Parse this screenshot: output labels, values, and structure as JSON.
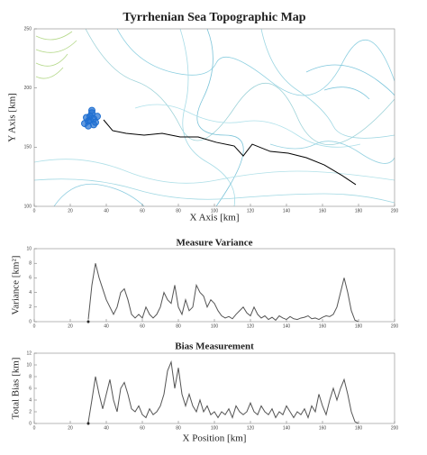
{
  "chart_data": [
    {
      "type": "line",
      "title": "Tyrrhenian Sea Topographic Map",
      "xlabel": "X Axis [km]",
      "ylabel": "Y Axis [km]",
      "xlim": [
        0,
        200
      ],
      "ylim": [
        100,
        250
      ],
      "xticks": [
        0,
        20,
        40,
        60,
        80,
        100,
        120,
        140,
        160,
        180,
        200
      ],
      "yticks": [
        100,
        150,
        200,
        250
      ],
      "series": [
        {
          "color": "#000000",
          "x": [
            38.5,
            43.5,
            51,
            61,
            71,
            81,
            91,
            101,
            111,
            116,
            121,
            131,
            141,
            151,
            161,
            171,
            178.5
          ],
          "values": [
            173.1,
            164,
            161.7,
            160.2,
            161.7,
            158.6,
            158.6,
            154.1,
            151,
            142.6,
            152.5,
            146.4,
            144.9,
            141.1,
            135,
            125.9,
            118.3
          ]
        }
      ],
      "points": {
        "color": "#1f6fd1",
        "x": [
          28,
          30,
          31,
          32,
          33,
          34,
          30,
          29,
          32,
          35,
          31,
          33
        ],
        "y": [
          170,
          172,
          176,
          179,
          174,
          171,
          168,
          175,
          181,
          176,
          173,
          169
        ]
      }
    },
    {
      "type": "line",
      "title": "Measure Variance",
      "ylabel": "Variance [km²]",
      "xlim": [
        0,
        200
      ],
      "ylim": [
        0,
        10
      ],
      "xticks": [
        0,
        20,
        40,
        60,
        80,
        100,
        120,
        140,
        160,
        180,
        200
      ],
      "yticks": [
        0,
        2,
        4,
        6,
        8,
        10
      ],
      "start": {
        "x": 30,
        "y": 0
      },
      "series": [
        {
          "color": "#555555",
          "x": [
            30,
            32,
            34,
            36,
            38,
            40,
            42,
            44,
            46,
            48,
            50,
            52,
            54,
            56,
            58,
            60,
            62,
            64,
            66,
            68,
            70,
            72,
            74,
            76,
            78,
            80,
            82,
            84,
            86,
            88,
            90,
            92,
            94,
            96,
            98,
            100,
            102,
            104,
            106,
            108,
            110,
            112,
            114,
            116,
            118,
            120,
            122,
            124,
            126,
            128,
            130,
            132,
            134,
            136,
            138,
            140,
            142,
            144,
            146,
            148,
            150,
            152,
            154,
            156,
            158,
            160,
            162,
            164,
            166,
            168,
            170,
            172,
            174,
            176,
            178,
            180
          ],
          "values": [
            0.3,
            5,
            8,
            6,
            4.5,
            3,
            2,
            1,
            2,
            4,
            4.5,
            3,
            1,
            0.5,
            1,
            0.5,
            2,
            1,
            0.5,
            1,
            2,
            4,
            3,
            2.5,
            5,
            2,
            1,
            3,
            1.5,
            2,
            5,
            4,
            3.5,
            2,
            3,
            2.5,
            1.5,
            0.8,
            0.5,
            0.7,
            0.4,
            1,
            1.5,
            2,
            1.2,
            0.8,
            2,
            1,
            0.5,
            0.8,
            0.3,
            0.6,
            0.2,
            0.8,
            0.5,
            0.3,
            0.7,
            0.4,
            0.3,
            0.5,
            0.6,
            0.8,
            0.4,
            0.5,
            0.3,
            0.6,
            0.8,
            0.7,
            1,
            2,
            4,
            6,
            4,
            1.5,
            0.2,
            0
          ]
        }
      ]
    },
    {
      "type": "line",
      "title": "Bias Measurement",
      "xlabel": "X Position [km]",
      "ylabel": "Total Bias [km]",
      "xlim": [
        0,
        200
      ],
      "ylim": [
        0,
        12
      ],
      "xticks": [
        0,
        20,
        40,
        60,
        80,
        100,
        120,
        140,
        160,
        180,
        200
      ],
      "yticks": [
        0,
        2,
        4,
        6,
        8,
        10,
        12
      ],
      "start": {
        "x": 30,
        "y": 0
      },
      "series": [
        {
          "color": "#555555",
          "x": [
            30,
            32,
            34,
            36,
            38,
            40,
            42,
            44,
            46,
            48,
            50,
            52,
            54,
            56,
            58,
            60,
            62,
            64,
            66,
            68,
            70,
            72,
            74,
            76,
            78,
            80,
            82,
            84,
            86,
            88,
            90,
            92,
            94,
            96,
            98,
            100,
            102,
            104,
            106,
            108,
            110,
            112,
            114,
            116,
            118,
            120,
            122,
            124,
            126,
            128,
            130,
            132,
            134,
            136,
            138,
            140,
            142,
            144,
            146,
            148,
            150,
            152,
            154,
            156,
            158,
            160,
            162,
            164,
            166,
            168,
            170,
            172,
            174,
            176,
            178,
            180
          ],
          "values": [
            0.2,
            4,
            8,
            5,
            2.5,
            5,
            7.5,
            4,
            2,
            6,
            7,
            5,
            2.5,
            2,
            3,
            1.5,
            1,
            2.5,
            1.5,
            2,
            3,
            5,
            9,
            10.5,
            6,
            9.5,
            5,
            3,
            5,
            3,
            2,
            4,
            2,
            3,
            1.5,
            2,
            1,
            2,
            1.5,
            2.5,
            1,
            3,
            2,
            1.5,
            2,
            3.5,
            2,
            1.5,
            3,
            2,
            1.5,
            2.5,
            1,
            2,
            1.5,
            3,
            2,
            1,
            2,
            1.5,
            2.5,
            1,
            3,
            2,
            5,
            3,
            1.5,
            4,
            6,
            4,
            6,
            7.5,
            5,
            2,
            0.3,
            0
          ]
        }
      ]
    }
  ]
}
